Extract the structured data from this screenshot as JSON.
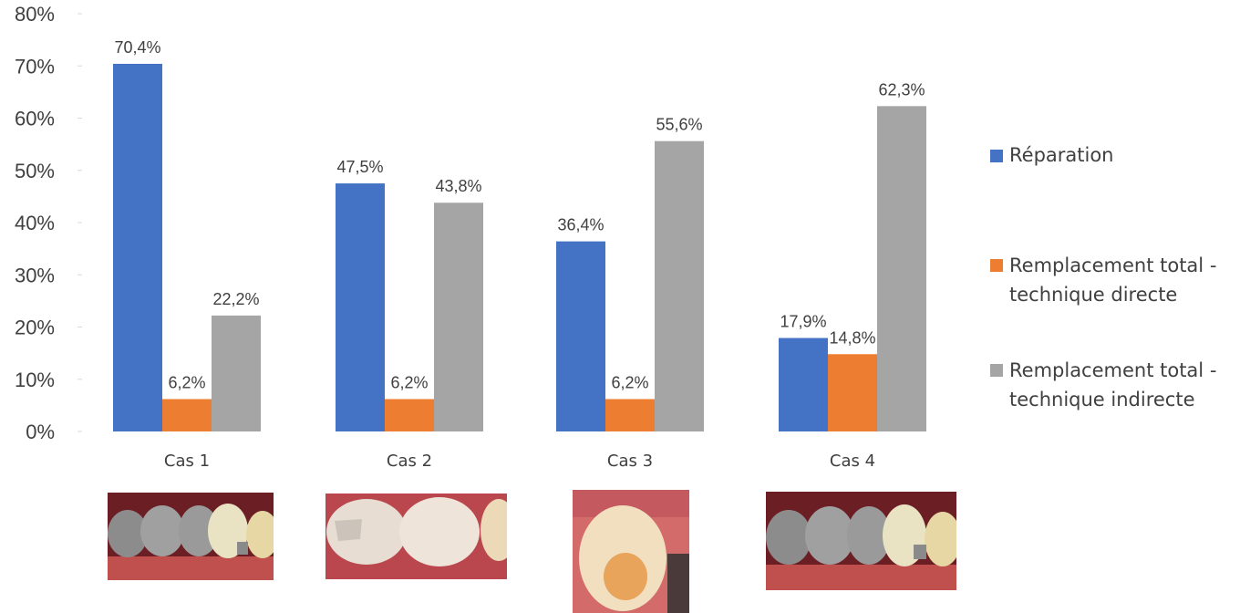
{
  "chart_data": {
    "type": "bar",
    "categories": [
      "Cas 1",
      "Cas 2",
      "Cas 3",
      "Cas 4"
    ],
    "series": [
      {
        "name": "Réparation",
        "color": "#4472C4",
        "values": [
          70.4,
          47.5,
          36.4,
          17.9
        ],
        "labels": [
          "70,4%",
          "47,5%",
          "36,4%",
          "17,9%"
        ]
      },
      {
        "name": "Remplacement total - technique directe",
        "legend_lines": [
          "Remplacement total -",
          "technique directe"
        ],
        "color": "#ED7D31",
        "values": [
          6.2,
          6.2,
          6.2,
          14.8
        ],
        "labels": [
          "6,2%",
          "6,2%",
          "6,2%",
          "14,8%"
        ]
      },
      {
        "name": "Remplacement total - technique indirecte",
        "legend_lines": [
          "Remplacement total -",
          "technique indirecte"
        ],
        "color": "#A5A5A5",
        "values": [
          22.2,
          43.8,
          55.6,
          62.3
        ],
        "labels": [
          "22,2%",
          "43,8%",
          "55,6%",
          "62,3%"
        ]
      }
    ],
    "yticks": [
      "0%",
      "10%",
      "20%",
      "30%",
      "40%",
      "50%",
      "60%",
      "70%",
      "80%"
    ],
    "ylim": [
      0,
      80
    ],
    "grid": false,
    "legend_position": "right",
    "title": "",
    "xlabel": "",
    "ylabel": ""
  },
  "images": [
    {
      "name": "cas-1-teeth-photo",
      "depicts": "amalgam fillings and crown"
    },
    {
      "name": "cas-2-teeth-photo",
      "depicts": "molars with composite restoration"
    },
    {
      "name": "cas-3-teeth-photo",
      "depicts": "single tooth close-up"
    },
    {
      "name": "cas-4-teeth-photo",
      "depicts": "amalgam fillings and crown"
    }
  ]
}
